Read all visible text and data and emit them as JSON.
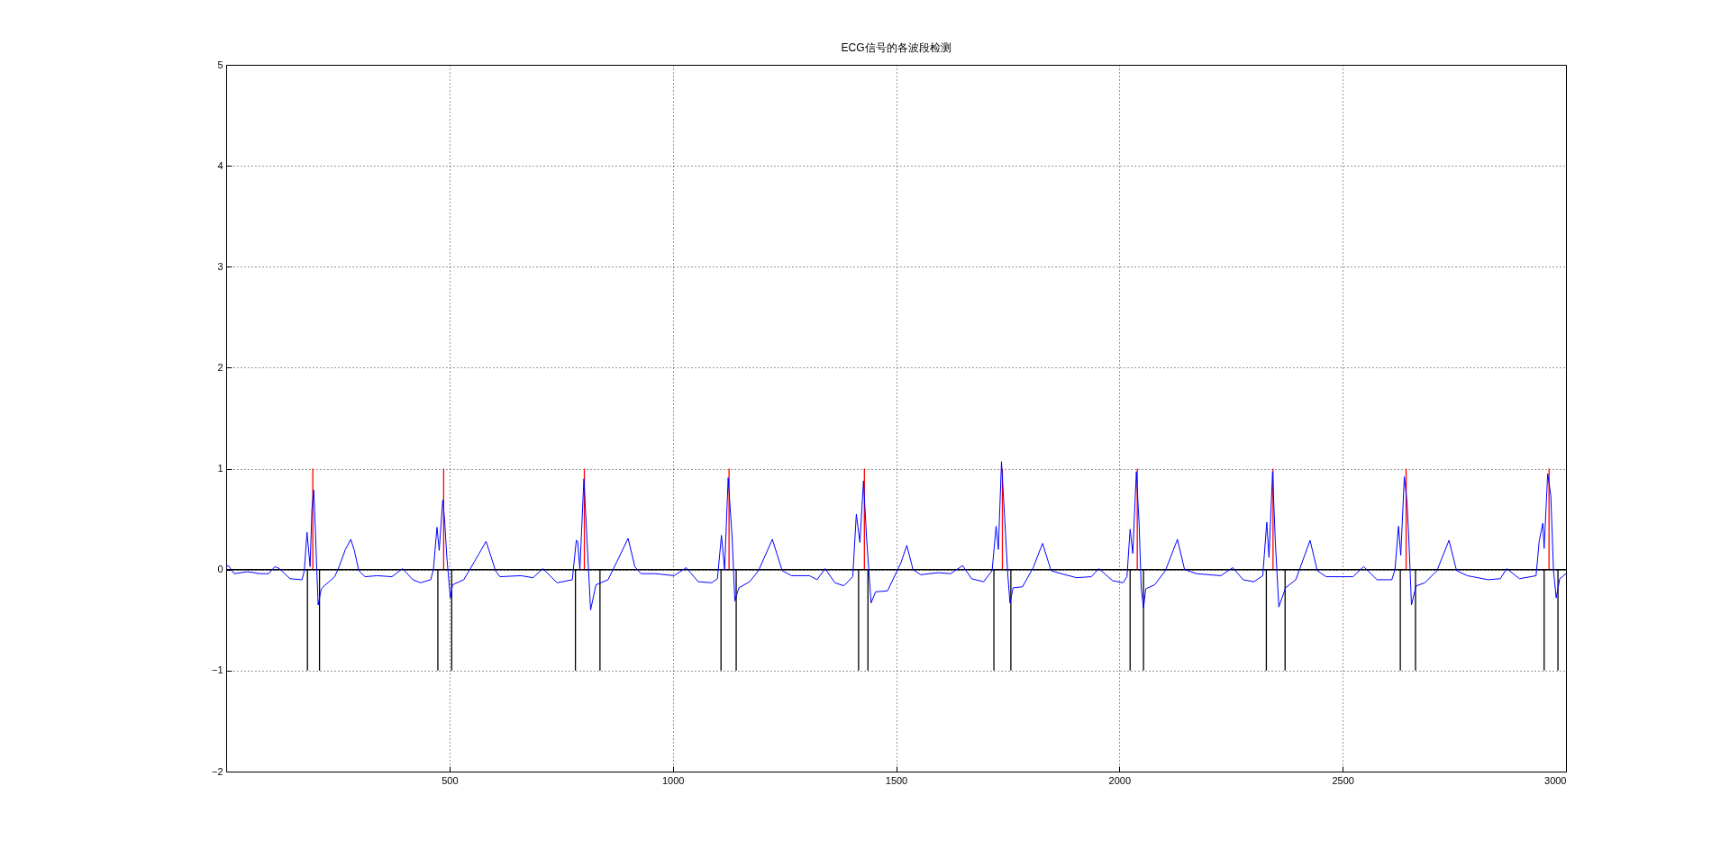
{
  "chart_data": {
    "type": "line",
    "title": "ECG信号的各波段检测",
    "xlim": [
      0,
      3000
    ],
    "xticks": [
      500,
      1000,
      1500,
      2000,
      2500,
      3000
    ],
    "ylim": [
      -2,
      5
    ],
    "yticks": [
      -2,
      -1,
      0,
      1,
      2,
      3,
      4,
      5
    ],
    "grid": true,
    "ref_lines": [
      {
        "axis": "y",
        "value": 0,
        "color": "#000000"
      }
    ],
    "series": [
      {
        "color": "#0000ff",
        "x": [
          0,
          5,
          18,
          48,
          75,
          95,
          109,
          119,
          143,
          170,
          175,
          181,
          188,
          192,
          196,
          200,
          203,
          206,
          213,
          220,
          243,
          253,
          267,
          279,
          287,
          297,
          311,
          338,
          371,
          395,
          418,
          435,
          458,
          464,
          472,
          477,
          485,
          489,
          494,
          502,
          507,
          532,
          556,
          582,
          593,
          603,
          613,
          660,
          687,
          709,
          741,
          775,
          784,
          787,
          792,
          801,
          808,
          816,
          828,
          855,
          875,
          900,
          915,
          929,
          962,
          1003,
          1030,
          1057,
          1087,
          1100,
          1109,
          1116,
          1124,
          1133,
          1139,
          1148,
          1172,
          1192,
          1223,
          1245,
          1266,
          1306,
          1323,
          1341,
          1363,
          1383,
          1403,
          1411,
          1419,
          1427,
          1434,
          1444,
          1454,
          1481,
          1511,
          1524,
          1538,
          1555,
          1595,
          1622,
          1649,
          1669,
          1696,
          1715,
          1724,
          1729,
          1736,
          1743,
          1750,
          1755,
          1762,
          1783,
          1807,
          1828,
          1847,
          1870,
          1904,
          1937,
          1954,
          1985,
          2008,
          2017,
          2024,
          2030,
          2038,
          2044,
          2049,
          2054,
          2059,
          2079,
          2103,
          2130,
          2146,
          2173,
          2227,
          2254,
          2277,
          2301,
          2321,
          2330,
          2335,
          2343,
          2349,
          2357,
          2372,
          2395,
          2427,
          2443,
          2463,
          2523,
          2547,
          2577,
          2610,
          2617,
          2625,
          2630,
          2638,
          2644,
          2648,
          2654,
          2661,
          2665,
          2684,
          2711,
          2738,
          2755,
          2779,
          2826,
          2853,
          2867,
          2896,
          2933,
          2940,
          2948,
          2951,
          2959,
          2966,
          2972,
          2978,
          2986,
          3000
        ],
        "values": [
          0.03,
          0.04,
          -0.04,
          -0.02,
          -0.04,
          -0.04,
          0.03,
          0.01,
          -0.09,
          -0.1,
          -0.01,
          0.37,
          0.03,
          0.6,
          0.79,
          0.37,
          -0.01,
          -0.35,
          -0.19,
          -0.16,
          -0.07,
          0.03,
          0.2,
          0.3,
          0.19,
          -0.01,
          -0.07,
          -0.06,
          -0.07,
          0.01,
          -0.1,
          -0.13,
          -0.1,
          0,
          0.42,
          0.19,
          0.69,
          0.5,
          0.13,
          -0.28,
          -0.15,
          -0.1,
          0.08,
          0.28,
          0.13,
          -0.01,
          -0.07,
          -0.06,
          -0.08,
          0.01,
          -0.13,
          -0.1,
          0.29,
          0.28,
          0,
          0.9,
          0.29,
          -0.4,
          -0.15,
          -0.1,
          0.08,
          0.31,
          0.03,
          -0.04,
          -0.04,
          -0.06,
          0.02,
          -0.12,
          -0.13,
          -0.09,
          0.34,
          0,
          0.91,
          0.31,
          -0.31,
          -0.18,
          -0.12,
          -0.01,
          0.3,
          -0.01,
          -0.06,
          -0.06,
          -0.1,
          0.01,
          -0.13,
          -0.16,
          -0.07,
          0.55,
          0.27,
          0.88,
          0.31,
          -0.33,
          -0.22,
          -0.21,
          0.07,
          0.24,
          0,
          -0.05,
          -0.03,
          -0.04,
          0.04,
          -0.09,
          -0.12,
          -0.01,
          0.43,
          0.2,
          1.07,
          0.52,
          -0.04,
          -0.33,
          -0.18,
          -0.17,
          0.02,
          0.26,
          -0.01,
          -0.04,
          -0.08,
          -0.07,
          0.01,
          -0.11,
          -0.13,
          -0.07,
          0.4,
          0.16,
          0.97,
          0.47,
          -0.19,
          -0.38,
          -0.19,
          -0.15,
          -0.01,
          0.3,
          0,
          -0.04,
          -0.06,
          0.02,
          -0.1,
          -0.12,
          -0.06,
          0.47,
          0.12,
          0.97,
          0.29,
          -0.37,
          -0.18,
          -0.1,
          0.29,
          -0.01,
          -0.07,
          -0.07,
          0.03,
          -0.1,
          -0.1,
          0,
          0.43,
          0.14,
          0.92,
          0.67,
          0.31,
          -0.35,
          -0.22,
          -0.16,
          -0.13,
          -0.01,
          0.29,
          -0.01,
          -0.06,
          -0.1,
          -0.09,
          0.01,
          -0.09,
          -0.06,
          0.28,
          0.46,
          0.21,
          0.95,
          0.73,
          -0.01,
          -0.28,
          -0.09,
          -0.04
        ]
      },
      {
        "type": "bar",
        "color": "#ff0000",
        "x": [
          194,
          487,
          802,
          1126,
          1429,
          1738,
          2040,
          2344,
          2642,
          2962
        ],
        "values": [
          1,
          1,
          1,
          1,
          1,
          1,
          1,
          1,
          1,
          1
        ]
      },
      {
        "type": "bar",
        "color": "#000000",
        "x": [
          182,
          209,
          474,
          505,
          782,
          837,
          1108,
          1142,
          1416,
          1437,
          1719,
          1757,
          2024,
          2054,
          2329,
          2371,
          2629,
          2663,
          2951,
          2982
        ],
        "values": [
          -1,
          -1,
          -1,
          -1,
          -1,
          -1,
          -1,
          -1,
          -1,
          -1,
          -1,
          -1,
          -1,
          -1,
          -1,
          -1,
          -1,
          -1,
          -1,
          -1
        ]
      }
    ]
  }
}
